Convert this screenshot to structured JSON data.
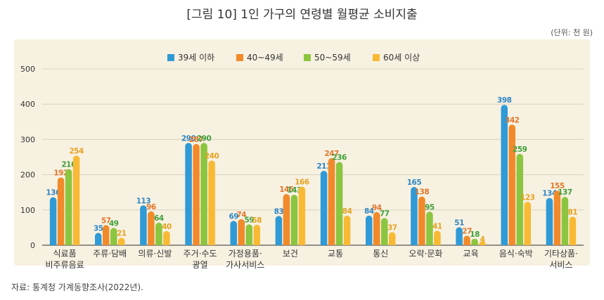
{
  "header": {
    "title": "[그림 10] 1인 가구의 연령별 월평균 소비지출",
    "unit": "(단위: 천 원)"
  },
  "source": "자료: 통계청 가계동향조사(2022년).",
  "colors": {
    "series": [
      "#2f9ad6",
      "#f18a2a",
      "#8cc53f",
      "#f8b934"
    ],
    "label_text": [
      "#2f86c4",
      "#e2762a",
      "#3f9f3a",
      "#e6a21f"
    ],
    "panel_bg": "#f7f1e1"
  },
  "chart_data": {
    "type": "bar",
    "title": "[그림 10] 1인 가구의 연령별 월평균 소비지출",
    "ylim": [
      0,
      500
    ],
    "yticks": [
      0,
      100,
      200,
      300,
      400,
      500
    ],
    "grid": true,
    "legend_position": "top-center",
    "categories": [
      [
        "식료품",
        "비주류음료"
      ],
      [
        "주류·담배"
      ],
      [
        "의류·신발"
      ],
      [
        "주거·수도",
        "광열"
      ],
      [
        "가정용품·",
        "가사서비스"
      ],
      [
        "보건"
      ],
      [
        "교통"
      ],
      [
        "통신"
      ],
      [
        "오락·문화"
      ],
      [
        "교육"
      ],
      [
        "음식·숙박"
      ],
      [
        "기타상품·",
        "서비스"
      ]
    ],
    "series": [
      {
        "name": "39세 이하",
        "values": [
          136,
          35,
          113,
          290,
          69,
          83,
          211,
          84,
          165,
          51,
          398,
          134
        ]
      },
      {
        "name": "40~49세",
        "values": [
          192,
          57,
          96,
          287,
          74,
          145,
          247,
          94,
          138,
          27,
          342,
          155
        ]
      },
      {
        "name": "50~59세",
        "values": [
          216,
          49,
          64,
          290,
          59,
          143,
          236,
          77,
          95,
          18,
          259,
          137
        ]
      },
      {
        "name": "60세 이상",
        "values": [
          254,
          21,
          40,
          240,
          58,
          166,
          84,
          37,
          41,
          4,
          123,
          81
        ]
      }
    ]
  }
}
